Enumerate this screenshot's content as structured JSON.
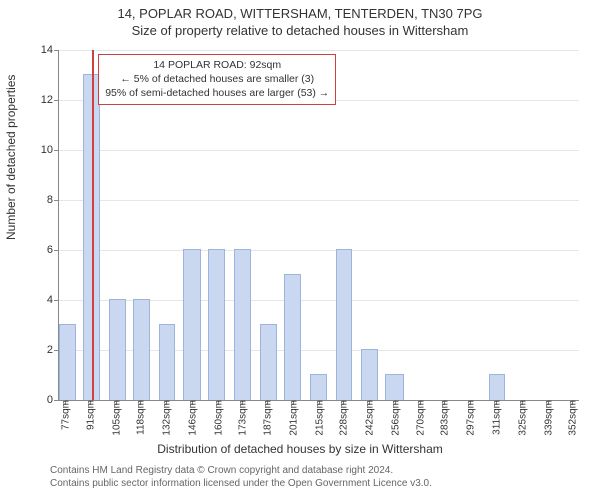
{
  "title": "14, POPLAR ROAD, WITTERSHAM, TENTERDEN, TN30 7PG",
  "subtitle": "Size of property relative to detached houses in Wittersham",
  "y_axis_label": "Number of detached properties",
  "x_axis_label": "Distribution of detached houses by size in Wittersham",
  "attribution_line1": "Contains HM Land Registry data © Crown copyright and database right 2024.",
  "attribution_line2": "Contains public sector information licensed under the Open Government Licence v3.0.",
  "chart": {
    "type": "histogram",
    "background_color": "#ffffff",
    "grid_color": "#e6e6e6",
    "axis_color": "#888888",
    "bar_fill": "#c9d8f0",
    "bar_stroke": "#9db4dd",
    "marker_color": "#d04040",
    "callout_border": "#d04040",
    "ylim": [
      0,
      14
    ],
    "ytick_step": 2,
    "x_tick_labels": [
      "77sqm",
      "91sqm",
      "105sqm",
      "118sqm",
      "132sqm",
      "146sqm",
      "160sqm",
      "173sqm",
      "187sqm",
      "201sqm",
      "215sqm",
      "228sqm",
      "242sqm",
      "256sqm",
      "270sqm",
      "283sqm",
      "297sqm",
      "311sqm",
      "325sqm",
      "339sqm",
      "352sqm"
    ],
    "x_tick_values_sqm": [
      77,
      91,
      105,
      118,
      132,
      146,
      160,
      173,
      187,
      201,
      215,
      228,
      242,
      256,
      270,
      283,
      297,
      311,
      325,
      339,
      352
    ],
    "x_range_sqm": [
      74,
      356
    ],
    "bins": [
      {
        "start_sqm": 74,
        "end_sqm": 82,
        "count": 3
      },
      {
        "start_sqm": 87,
        "end_sqm": 95,
        "count": 13
      },
      {
        "start_sqm": 101,
        "end_sqm": 109,
        "count": 4
      },
      {
        "start_sqm": 114,
        "end_sqm": 122,
        "count": 4
      },
      {
        "start_sqm": 128,
        "end_sqm": 136,
        "count": 3
      },
      {
        "start_sqm": 141,
        "end_sqm": 150,
        "count": 6
      },
      {
        "start_sqm": 155,
        "end_sqm": 163,
        "count": 6
      },
      {
        "start_sqm": 169,
        "end_sqm": 177,
        "count": 6
      },
      {
        "start_sqm": 183,
        "end_sqm": 191,
        "count": 3
      },
      {
        "start_sqm": 196,
        "end_sqm": 204,
        "count": 5
      },
      {
        "start_sqm": 210,
        "end_sqm": 218,
        "count": 1
      },
      {
        "start_sqm": 224,
        "end_sqm": 232,
        "count": 6
      },
      {
        "start_sqm": 238,
        "end_sqm": 246,
        "count": 2
      },
      {
        "start_sqm": 251,
        "end_sqm": 260,
        "count": 1
      },
      {
        "start_sqm": 307,
        "end_sqm": 315,
        "count": 1
      }
    ],
    "marker": {
      "sqm": 92,
      "height": 14
    }
  },
  "callout": {
    "line1": "14 POPLAR ROAD: 92sqm",
    "line2": "← 5% of detached houses are smaller (3)",
    "line3": "95% of semi-detached houses are larger (53) →"
  }
}
